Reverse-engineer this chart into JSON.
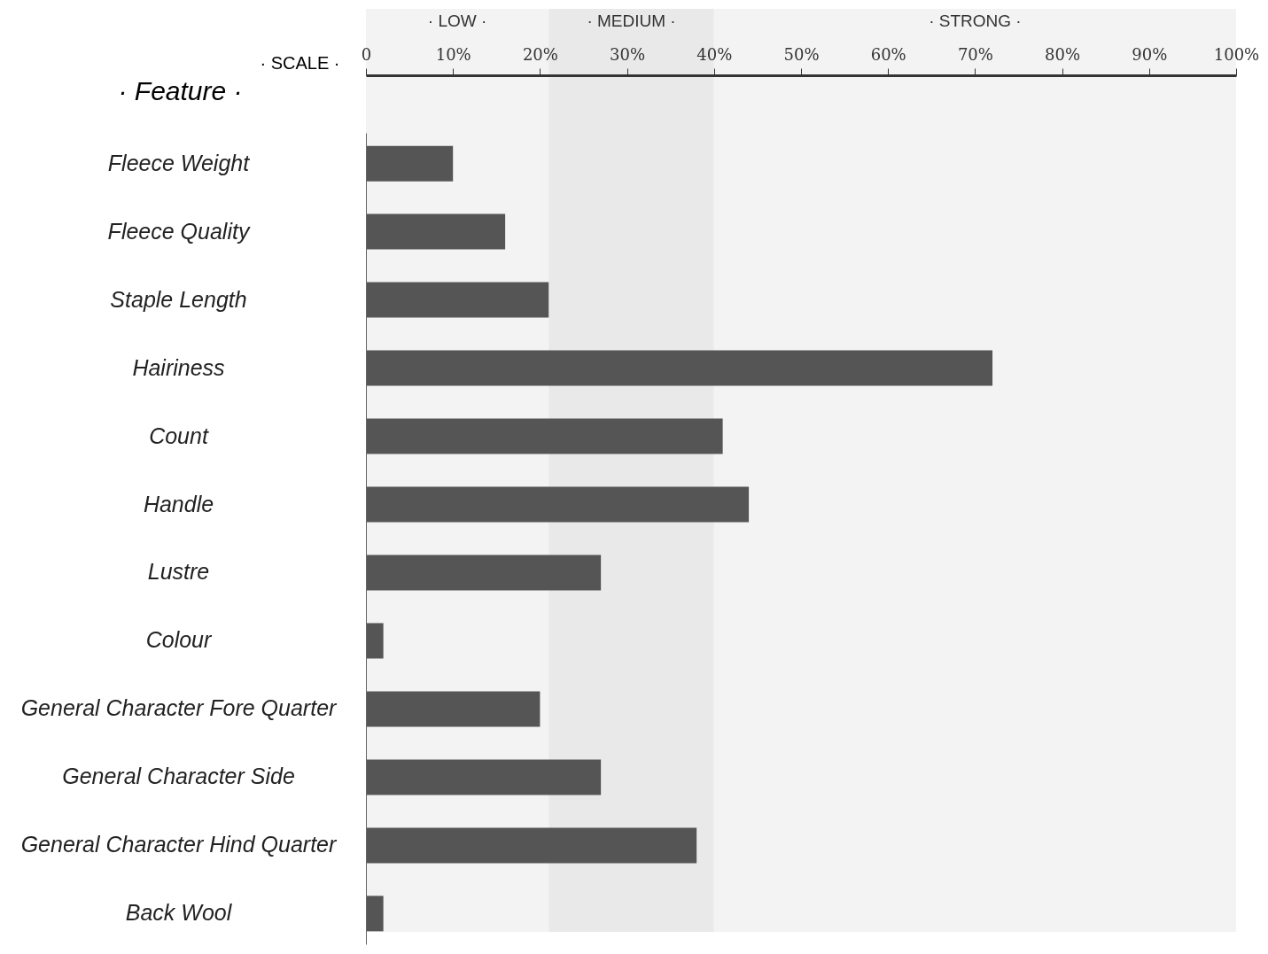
{
  "chart_data": {
    "type": "bar",
    "orientation": "horizontal",
    "xlabel": "· SCALE ·",
    "ylabel": "· Feature ·",
    "categories": [
      "Fleece Weight",
      "Fleece Quality",
      "Staple Length",
      "Hairiness",
      "Count",
      "Handle",
      "Lustre",
      "Colour",
      "General Character Fore Quarter",
      "General Character Side",
      "General Character Hind Quarter",
      "Back Wool"
    ],
    "values": [
      10,
      16,
      21,
      72,
      41,
      44,
      27,
      2,
      20,
      27,
      38,
      2
    ],
    "color": "#555555",
    "xlim": [
      0,
      100
    ],
    "xticks": [
      0,
      {
        "value": 10,
        "label": "10%"
      },
      {
        "value": 20,
        "label": "20%"
      },
      {
        "value": 30,
        "label": "30%"
      },
      {
        "value": 40,
        "label": "40%"
      },
      {
        "value": 50,
        "label": "50%"
      },
      {
        "value": 60,
        "label": "60%"
      },
      {
        "value": 70,
        "label": "70%"
      },
      {
        "value": 80,
        "label": "80%"
      },
      {
        "value": 90,
        "label": "90%"
      },
      {
        "value": 100,
        "label": "100%"
      }
    ],
    "bands": [
      {
        "axis": "x",
        "from": 0,
        "to": 21,
        "label": "· LOW ·",
        "color": "#f3f3f3"
      },
      {
        "axis": "x",
        "from": 21,
        "to": 40,
        "label": "· MEDIUM ·",
        "color": "#e9e9e9"
      },
      {
        "axis": "x",
        "from": 40,
        "to": 100,
        "label": "· STRONG ·",
        "color": "#f3f3f3"
      }
    ],
    "grid": false
  }
}
